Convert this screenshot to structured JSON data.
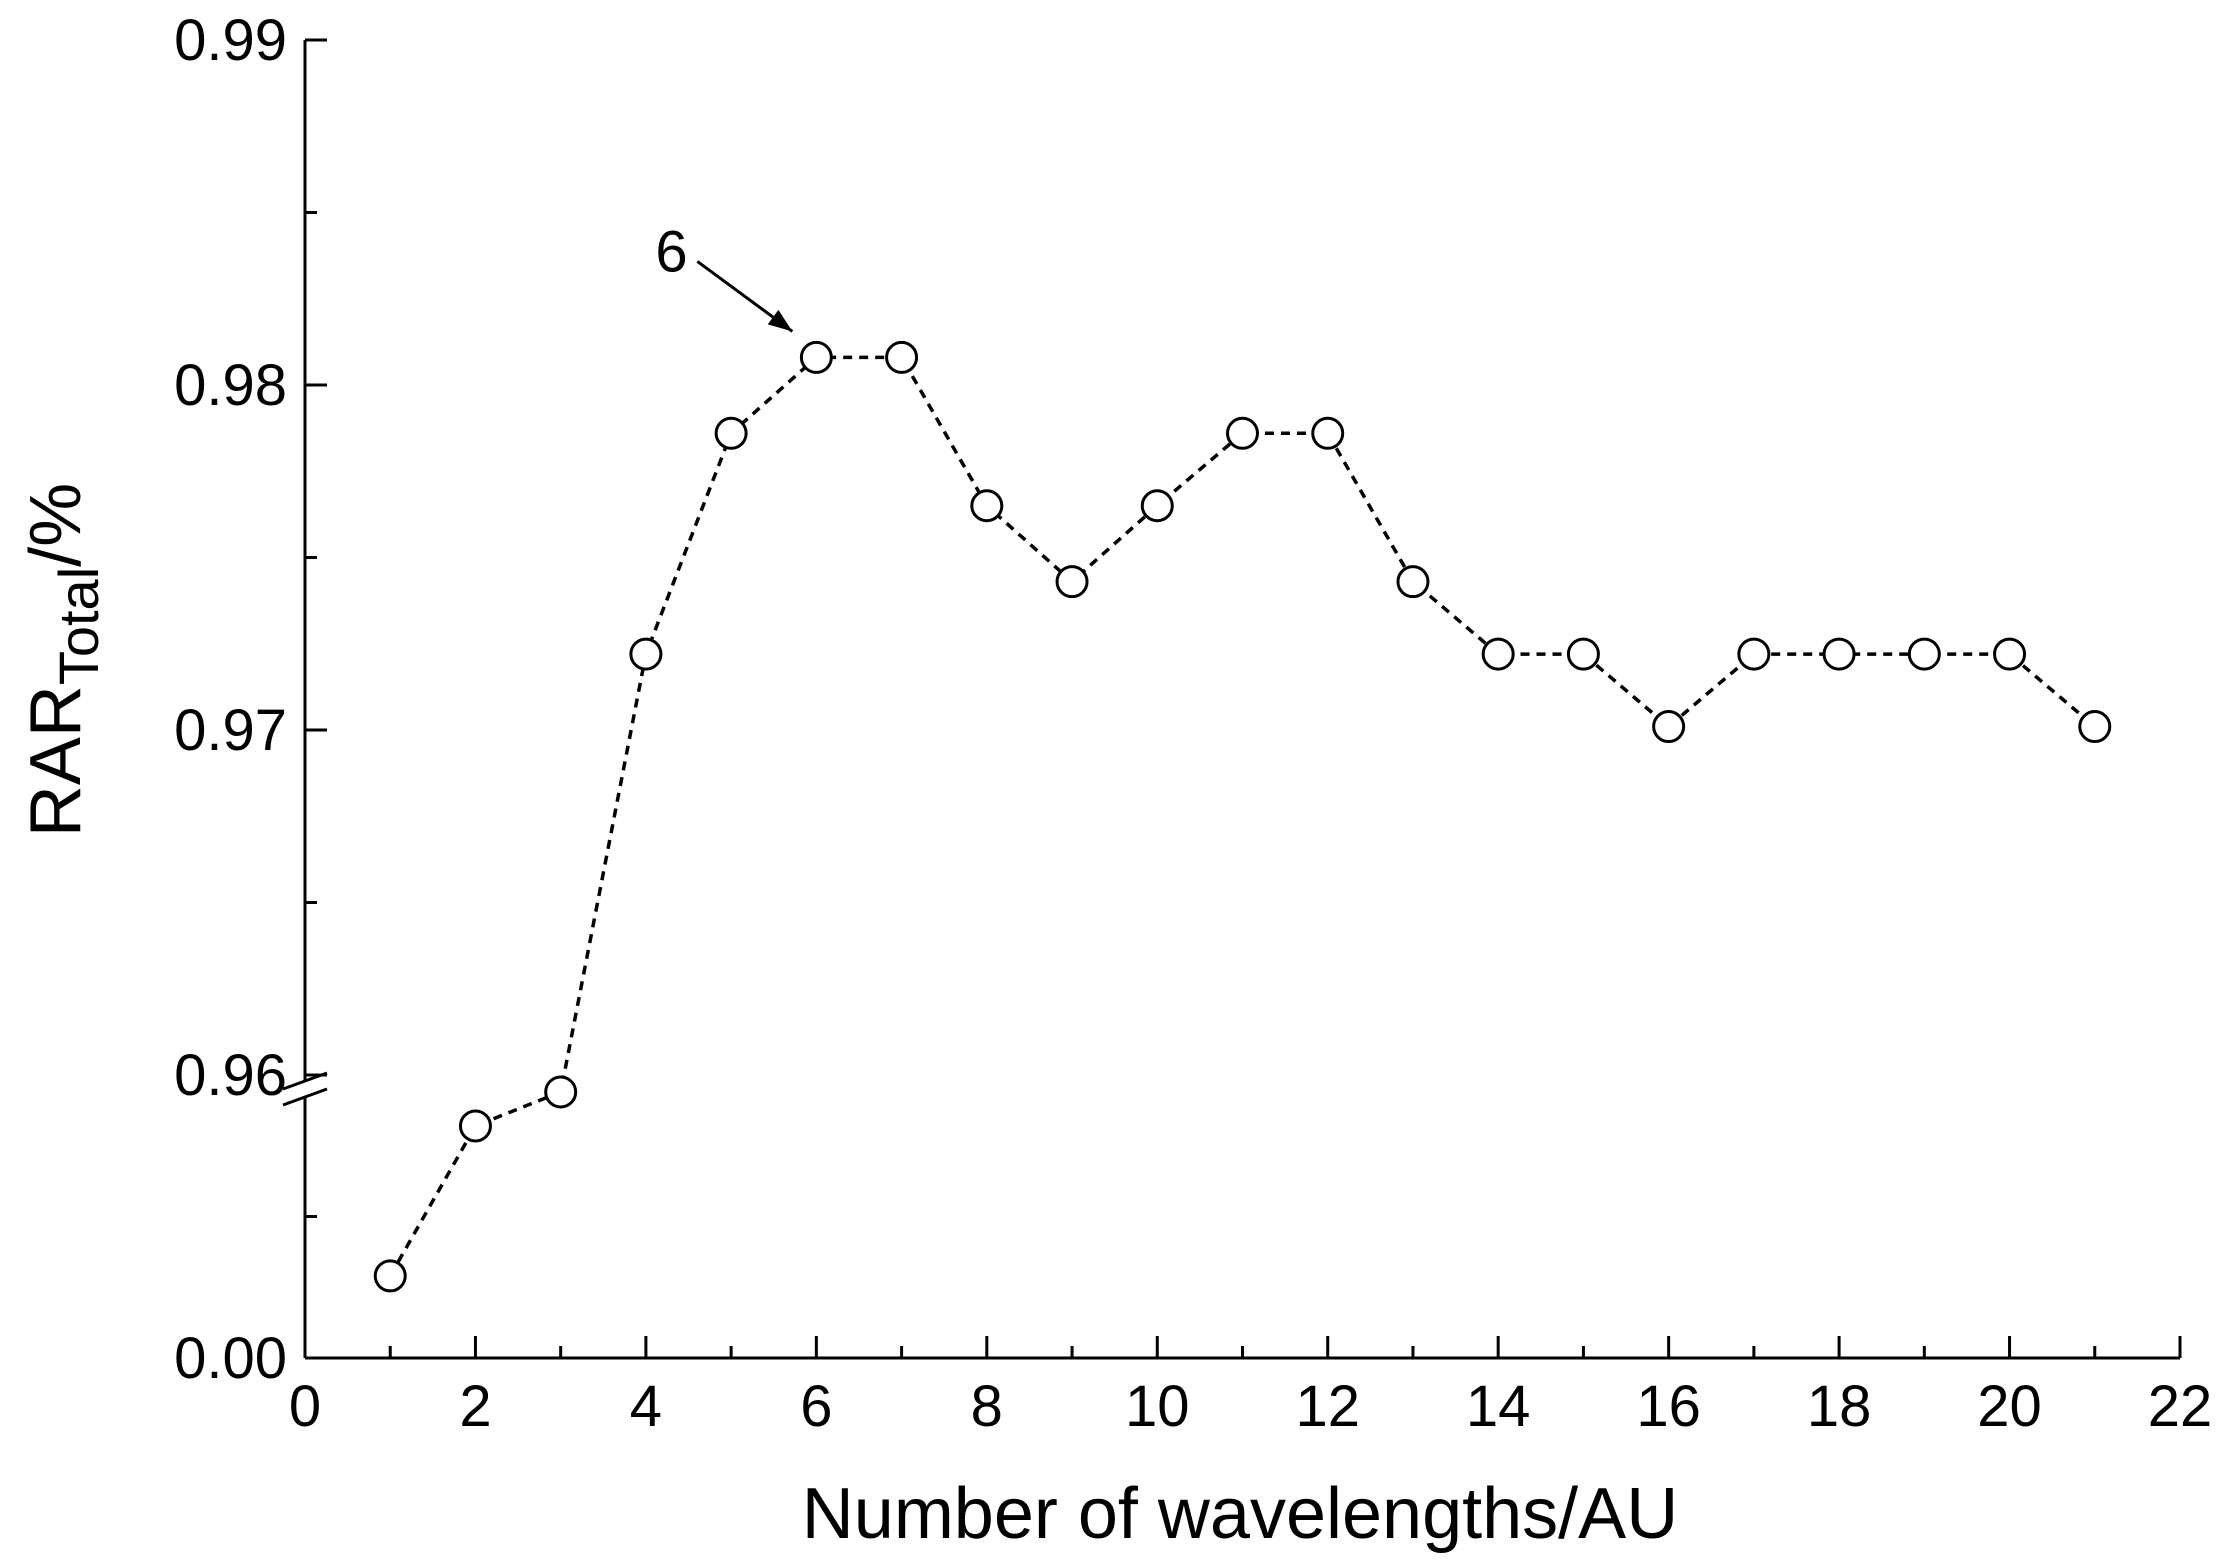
{
  "chart_data": {
    "type": "line",
    "title": "",
    "xlabel": "Number of wavelengths/AU",
    "ylabel": {
      "main": "RAR",
      "subscript": "Total",
      "suffix": "/%"
    },
    "xlim": [
      0,
      22
    ],
    "x_ticks": [
      "0",
      "2",
      "4",
      "6",
      "8",
      "10",
      "12",
      "14",
      "16",
      "18",
      "20",
      "22"
    ],
    "y_axis_broken": true,
    "y_break_between": [
      0.0,
      0.96
    ],
    "y_upper_range": [
      0.96,
      0.99
    ],
    "y_lower_range": [
      0.95,
      0.96
    ],
    "y_ticks": [
      "0.00",
      "0.96",
      "0.97",
      "0.98",
      "0.99"
    ],
    "y_tick_values": [
      0.95,
      0.96,
      0.97,
      0.98,
      0.99
    ],
    "grid": false,
    "legend": "none",
    "marker": "open-circle",
    "line_style": "dashed",
    "color": "#000000",
    "series": [
      {
        "x": [
          1,
          2,
          3,
          4,
          5,
          6,
          7,
          8,
          9,
          10,
          11,
          12,
          13,
          14,
          15,
          16,
          17,
          18,
          19,
          20,
          21
        ],
        "y": [
          0.9529,
          0.9582,
          0.9594,
          0.9722,
          0.9786,
          0.9808,
          0.9808,
          0.9765,
          0.9743,
          0.9765,
          0.9786,
          0.9786,
          0.9743,
          0.9722,
          0.9722,
          0.9701,
          0.9722,
          0.9722,
          0.9722,
          0.9722,
          0.9701
        ]
      }
    ],
    "annotations": [
      {
        "text": "6",
        "points_to_x": 6
      }
    ]
  }
}
